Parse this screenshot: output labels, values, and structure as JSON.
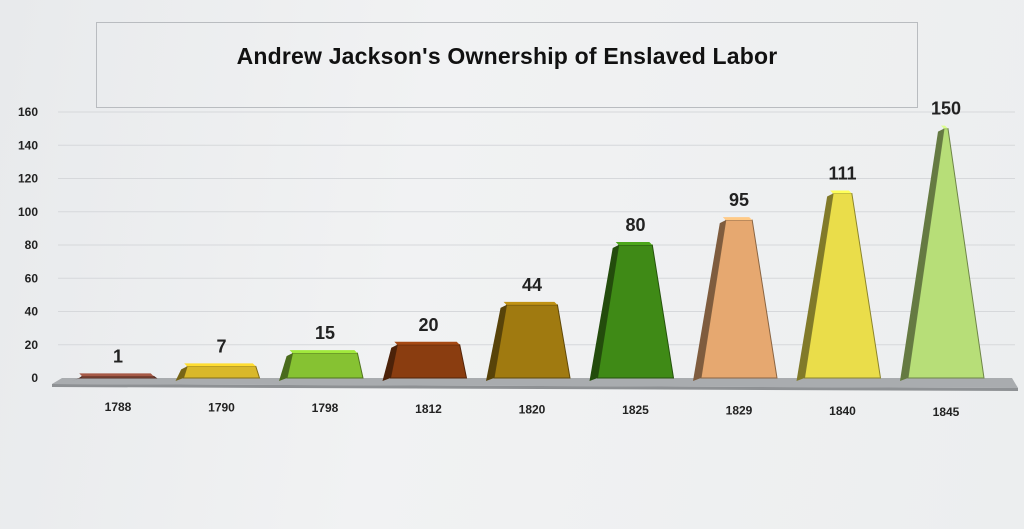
{
  "chart_data": {
    "type": "bar",
    "title": "Andrew Jackson's Ownership of Enslaved Labor",
    "categories": [
      "1788",
      "1790",
      "1798",
      "1812",
      "1820",
      "1825",
      "1829",
      "1840",
      "1845"
    ],
    "values": [
      1,
      7,
      15,
      20,
      44,
      80,
      95,
      111,
      150
    ],
    "yticks": [
      0,
      20,
      40,
      60,
      80,
      100,
      120,
      140,
      160
    ],
    "ylim": [
      0,
      160
    ],
    "grid": true,
    "colors": [
      "#8a4a3a",
      "#d9b82a",
      "#86c232",
      "#8a3d10",
      "#a07a10",
      "#3f8a16",
      "#e6a870",
      "#eadd4a",
      "#b7de78"
    ]
  }
}
